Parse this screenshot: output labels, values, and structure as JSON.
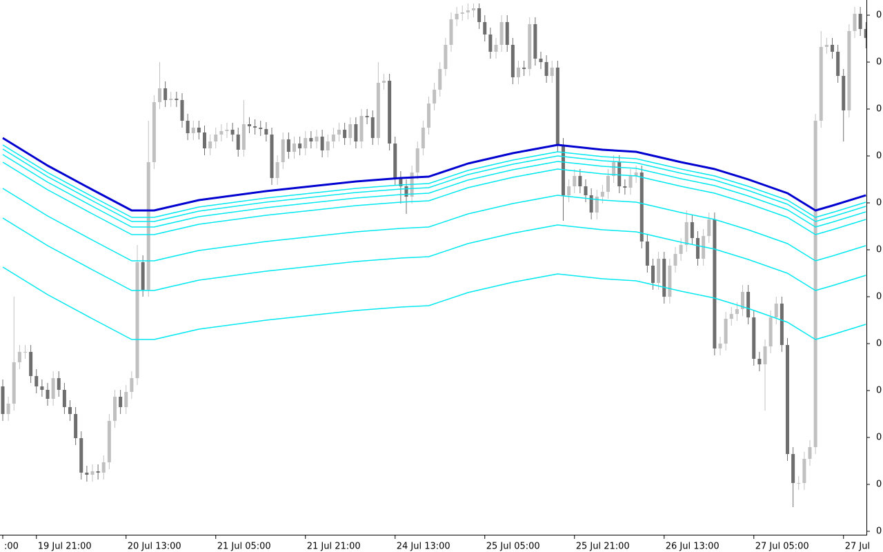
{
  "chart_data": {
    "type": "candlestick",
    "up_color": "#c0c0c0",
    "down_color": "#6e6e6e",
    "ylim": [
      0,
      775
    ],
    "yticks": [
      {
        "value": 5,
        "label": "0"
      },
      {
        "value": 73,
        "label": "0"
      },
      {
        "value": 141,
        "label": "0"
      },
      {
        "value": 209,
        "label": "0"
      },
      {
        "value": 277,
        "label": "0"
      },
      {
        "value": 345,
        "label": "0"
      },
      {
        "value": 413,
        "label": "0"
      },
      {
        "value": 481,
        "label": "0"
      },
      {
        "value": 549,
        "label": "0"
      },
      {
        "value": 617,
        "label": "0"
      },
      {
        "value": 685,
        "label": "0"
      },
      {
        "value": 753,
        "label": "0"
      }
    ],
    "categories": [
      ":00",
      null,
      null,
      null,
      null,
      null,
      "19 Jul 21:00",
      null,
      null,
      null,
      null,
      null,
      null,
      null,
      null,
      null,
      null,
      null,
      null,
      null,
      null,
      null,
      "20 Jul 13:00",
      null,
      null,
      null,
      null,
      null,
      null,
      null,
      null,
      null,
      null,
      null,
      null,
      null,
      null,
      null,
      "21 Jul 05:00",
      null,
      null,
      null,
      null,
      null,
      null,
      null,
      null,
      null,
      null,
      null,
      null,
      null,
      null,
      null,
      "21 Jul 21:00",
      null,
      null,
      null,
      null,
      null,
      null,
      null,
      null,
      null,
      null,
      null,
      null,
      null,
      null,
      null,
      "24 Jul 13:00",
      null,
      null,
      null,
      null,
      null,
      null,
      null,
      null,
      null,
      null,
      null,
      null,
      null,
      null,
      null,
      "25 Jul 05:00",
      null,
      null,
      null,
      null,
      null,
      null,
      null,
      null,
      null,
      null,
      null,
      null,
      null,
      null,
      null,
      "25 Jul 21:00",
      null,
      null,
      null,
      null,
      null,
      null,
      null,
      null,
      null,
      null,
      null,
      null,
      null,
      null,
      null,
      "26 Jul 13:00",
      null,
      null,
      null,
      null,
      null,
      null,
      null,
      null,
      null,
      null,
      null,
      null,
      null,
      null,
      null,
      "27 Jul 05:00",
      null,
      null,
      null,
      null,
      null,
      null,
      null,
      null,
      null,
      null,
      null,
      null,
      null,
      null,
      null,
      "27 Jul",
      null,
      null,
      null,
      null
    ],
    "ohlc": [
      [
        215,
        225,
        165,
        175
      ],
      [
        175,
        200,
        165,
        190
      ],
      [
        190,
        345,
        180,
        250
      ],
      [
        250,
        275,
        240,
        265
      ],
      [
        265,
        275,
        255,
        265
      ],
      [
        265,
        275,
        220,
        230
      ],
      [
        230,
        240,
        205,
        215
      ],
      [
        215,
        225,
        200,
        210
      ],
      [
        210,
        220,
        187,
        197
      ],
      [
        197,
        237,
        187,
        227
      ],
      [
        227,
        237,
        200,
        210
      ],
      [
        210,
        220,
        175,
        185
      ],
      [
        185,
        195,
        165,
        175
      ],
      [
        175,
        185,
        130,
        140
      ],
      [
        140,
        150,
        80,
        90
      ],
      [
        90,
        100,
        77,
        87
      ],
      [
        87,
        102,
        77,
        92
      ],
      [
        92,
        102,
        80,
        90
      ],
      [
        90,
        115,
        80,
        105
      ],
      [
        105,
        175,
        95,
        165
      ],
      [
        165,
        210,
        155,
        200
      ],
      [
        200,
        210,
        175,
        185
      ],
      [
        185,
        217,
        175,
        207
      ],
      [
        207,
        237,
        197,
        227
      ],
      [
        227,
        420,
        217,
        395
      ],
      [
        395,
        405,
        345,
        355
      ],
      [
        355,
        600,
        345,
        540
      ],
      [
        540,
        637,
        530,
        627
      ],
      [
        627,
        685,
        617,
        647
      ],
      [
        647,
        657,
        620,
        630
      ],
      [
        630,
        642,
        620,
        632
      ],
      [
        632,
        642,
        620,
        630
      ],
      [
        630,
        640,
        590,
        600
      ],
      [
        600,
        610,
        572,
        582
      ],
      [
        582,
        600,
        572,
        590
      ],
      [
        590,
        600,
        573,
        583
      ],
      [
        583,
        593,
        550,
        560
      ],
      [
        560,
        580,
        550,
        570
      ],
      [
        570,
        590,
        560,
        580
      ],
      [
        580,
        595,
        570,
        585
      ],
      [
        585,
        597,
        575,
        587
      ],
      [
        587,
        597,
        570,
        580
      ],
      [
        580,
        590,
        548,
        558
      ],
      [
        558,
        630,
        548,
        595
      ],
      [
        595,
        605,
        582,
        592
      ],
      [
        592,
        602,
        580,
        590
      ],
      [
        590,
        600,
        578,
        588
      ],
      [
        588,
        598,
        570,
        580
      ],
      [
        580,
        590,
        507,
        517
      ],
      [
        517,
        550,
        507,
        540
      ],
      [
        540,
        583,
        530,
        573
      ],
      [
        573,
        583,
        545,
        555
      ],
      [
        555,
        577,
        545,
        567
      ],
      [
        567,
        577,
        550,
        560
      ],
      [
        560,
        585,
        550,
        575
      ],
      [
        575,
        585,
        560,
        570
      ],
      [
        570,
        587,
        560,
        577
      ],
      [
        577,
        587,
        547,
        557
      ],
      [
        557,
        580,
        547,
        570
      ],
      [
        570,
        590,
        560,
        580
      ],
      [
        580,
        597,
        570,
        587
      ],
      [
        587,
        597,
        565,
        575
      ],
      [
        575,
        605,
        565,
        595
      ],
      [
        595,
        605,
        560,
        570
      ],
      [
        570,
        617,
        560,
        607
      ],
      [
        607,
        617,
        595,
        605
      ],
      [
        605,
        615,
        565,
        575
      ],
      [
        575,
        685,
        565,
        655
      ],
      [
        655,
        668,
        645,
        658
      ],
      [
        658,
        668,
        557,
        567
      ],
      [
        567,
        577,
        507,
        517
      ],
      [
        517,
        527,
        480,
        505
      ],
      [
        505,
        515,
        465,
        490
      ],
      [
        490,
        535,
        480,
        525
      ],
      [
        525,
        570,
        515,
        560
      ],
      [
        560,
        600,
        550,
        590
      ],
      [
        590,
        635,
        580,
        625
      ],
      [
        625,
        655,
        615,
        645
      ],
      [
        645,
        685,
        635,
        675
      ],
      [
        675,
        720,
        665,
        710
      ],
      [
        710,
        757,
        700,
        747
      ],
      [
        747,
        765,
        737,
        755
      ],
      [
        755,
        767,
        745,
        757
      ],
      [
        757,
        770,
        747,
        760
      ],
      [
        760,
        770,
        750,
        763
      ],
      [
        763,
        770,
        733,
        743
      ],
      [
        743,
        753,
        715,
        725
      ],
      [
        725,
        735,
        690,
        700
      ],
      [
        700,
        720,
        690,
        710
      ],
      [
        710,
        753,
        700,
        743
      ],
      [
        743,
        753,
        700,
        710
      ],
      [
        710,
        720,
        653,
        663
      ],
      [
        663,
        687,
        653,
        677
      ],
      [
        677,
        687,
        665,
        675
      ],
      [
        675,
        750,
        665,
        740
      ],
      [
        740,
        750,
        680,
        690
      ],
      [
        690,
        700,
        675,
        685
      ],
      [
        685,
        695,
        655,
        665
      ],
      [
        665,
        687,
        655,
        677
      ],
      [
        677,
        687,
        555,
        565
      ],
      [
        565,
        575,
        455,
        492
      ],
      [
        492,
        515,
        482,
        505
      ],
      [
        505,
        530,
        495,
        520
      ],
      [
        520,
        530,
        495,
        505
      ],
      [
        505,
        515,
        482,
        492
      ],
      [
        492,
        502,
        457,
        467
      ],
      [
        467,
        500,
        457,
        490
      ],
      [
        490,
        507,
        480,
        497
      ],
      [
        497,
        530,
        487,
        520
      ],
      [
        520,
        550,
        510,
        540
      ],
      [
        540,
        550,
        495,
        505
      ],
      [
        505,
        515,
        493,
        503
      ],
      [
        503,
        530,
        493,
        520
      ],
      [
        520,
        535,
        510,
        525
      ],
      [
        525,
        535,
        415,
        425
      ],
      [
        425,
        435,
        380,
        390
      ],
      [
        390,
        400,
        355,
        365
      ],
      [
        365,
        410,
        355,
        400
      ],
      [
        400,
        410,
        335,
        345
      ],
      [
        345,
        400,
        335,
        390
      ],
      [
        390,
        417,
        380,
        407
      ],
      [
        407,
        430,
        397,
        420
      ],
      [
        420,
        470,
        410,
        453
      ],
      [
        453,
        463,
        420,
        430
      ],
      [
        430,
        440,
        390,
        400
      ],
      [
        400,
        443,
        390,
        433
      ],
      [
        433,
        467,
        423,
        457
      ],
      [
        457,
        467,
        260,
        270
      ],
      [
        270,
        287,
        260,
        277
      ],
      [
        277,
        323,
        267,
        313
      ],
      [
        313,
        330,
        303,
        320
      ],
      [
        320,
        337,
        310,
        327
      ],
      [
        327,
        362,
        317,
        352
      ],
      [
        352,
        362,
        305,
        315
      ],
      [
        315,
        325,
        245,
        255
      ],
      [
        255,
        265,
        237,
        247
      ],
      [
        247,
        283,
        180,
        273
      ],
      [
        273,
        325,
        263,
        315
      ],
      [
        315,
        345,
        305,
        335
      ],
      [
        335,
        345,
        265,
        275
      ],
      [
        275,
        285,
        107,
        117
      ],
      [
        117,
        127,
        40,
        75
      ],
      [
        75,
        85,
        65,
        75
      ],
      [
        75,
        120,
        65,
        110
      ],
      [
        110,
        137,
        100,
        127
      ],
      [
        127,
        610,
        117,
        600
      ],
      [
        600,
        730,
        590,
        707
      ],
      [
        707,
        720,
        697,
        710
      ],
      [
        710,
        720,
        690,
        700
      ],
      [
        700,
        710,
        655,
        665
      ],
      [
        665,
        675,
        570,
        615
      ],
      [
        615,
        740,
        605,
        730
      ],
      [
        730,
        765,
        720,
        755
      ],
      [
        755,
        765,
        723,
        733
      ],
      [
        733,
        743,
        705,
        720
      ]
    ],
    "lines": [
      {
        "color": "#00e8f0",
        "width": 1.5,
        "x": [
          0,
          8,
          16,
          23,
          27,
          35,
          47,
          55,
          63,
          71,
          76,
          83,
          91,
          99,
          107,
          113,
          121,
          127,
          133,
          140,
          145,
          148,
          154
        ],
        "values": [
          388,
          348,
          313,
          283,
          283,
          298,
          311,
          318,
          325,
          330,
          332,
          351,
          366,
          378,
          371,
          368,
          353,
          343,
          328,
          308,
          283,
          290,
          305
        ]
      },
      {
        "color": "#00e8f0",
        "width": 1.5,
        "x": [
          0,
          8,
          16,
          23,
          27,
          35,
          47,
          55,
          63,
          71,
          76,
          83,
          91,
          99,
          107,
          113,
          121,
          127,
          133,
          140,
          145,
          148,
          154
        ],
        "values": [
          459,
          419,
          384,
          354,
          354,
          369,
          382,
          389,
          396,
          401,
          403,
          422,
          437,
          449,
          442,
          439,
          424,
          414,
          399,
          379,
          354,
          361,
          376
        ]
      },
      {
        "color": "#00e8f0",
        "width": 1.5,
        "x": [
          0,
          8,
          16,
          23,
          27,
          35,
          47,
          55,
          63,
          71,
          76,
          83,
          91,
          99,
          107,
          113,
          121,
          127,
          133,
          140,
          145,
          148,
          154
        ],
        "values": [
          502,
          462,
          427,
          397,
          397,
          412,
          425,
          432,
          439,
          444,
          446,
          465,
          480,
          492,
          485,
          482,
          467,
          457,
          442,
          422,
          397,
          404,
          419
        ]
      },
      {
        "color": "#00e8f0",
        "width": 1.5,
        "x": [
          0,
          8,
          16,
          23,
          27,
          35,
          47,
          55,
          63,
          71,
          76,
          83,
          91,
          99,
          107,
          113,
          121,
          127,
          133,
          140,
          145,
          148,
          154
        ],
        "values": [
          540,
          500,
          465,
          435,
          435,
          450,
          463,
          470,
          477,
          482,
          484,
          503,
          518,
          530,
          523,
          520,
          505,
          495,
          480,
          460,
          435,
          442,
          457
        ]
      },
      {
        "color": "#00e8f0",
        "width": 1.5,
        "x": [
          0,
          8,
          16,
          23,
          27,
          35,
          47,
          55,
          63,
          71,
          76,
          83,
          91,
          99,
          107,
          113,
          121,
          127,
          133,
          140,
          145,
          148,
          154
        ],
        "values": [
          551,
          511,
          476,
          446,
          446,
          461,
          474,
          481,
          488,
          493,
          495,
          514,
          529,
          541,
          534,
          531,
          516,
          506,
          491,
          471,
          446,
          453,
          468
        ]
      },
      {
        "color": "#00e8f0",
        "width": 1.5,
        "x": [
          0,
          8,
          16,
          23,
          27,
          35,
          47,
          55,
          63,
          71,
          76,
          83,
          91,
          99,
          107,
          113,
          121,
          127,
          133,
          140,
          145,
          148,
          154
        ],
        "values": [
          559,
          519,
          484,
          454,
          454,
          469,
          482,
          489,
          496,
          501,
          503,
          522,
          537,
          549,
          542,
          539,
          524,
          514,
          499,
          479,
          454,
          461,
          476
        ]
      },
      {
        "color": "#00e8f0",
        "width": 1.5,
        "x": [
          0,
          8,
          16,
          23,
          27,
          35,
          47,
          55,
          63,
          71,
          76,
          83,
          91,
          99,
          107,
          113,
          121,
          127,
          133,
          140,
          145,
          148,
          154
        ],
        "values": [
          565,
          525,
          490,
          460,
          460,
          475,
          488,
          495,
          502,
          507,
          509,
          528,
          543,
          555,
          548,
          545,
          530,
          520,
          505,
          485,
          460,
          467,
          482
        ]
      },
      {
        "color": "#0000d0",
        "width": 3,
        "x": [
          0,
          8,
          16,
          23,
          27,
          35,
          47,
          55,
          63,
          71,
          76,
          83,
          91,
          99,
          107,
          113,
          121,
          127,
          133,
          140,
          145,
          148,
          154
        ],
        "values": [
          575,
          535,
          500,
          470,
          470,
          485,
          498,
          505,
          512,
          517,
          519,
          538,
          553,
          565,
          558,
          555,
          540,
          530,
          515,
          495,
          470,
          477,
          492
        ]
      }
    ]
  }
}
